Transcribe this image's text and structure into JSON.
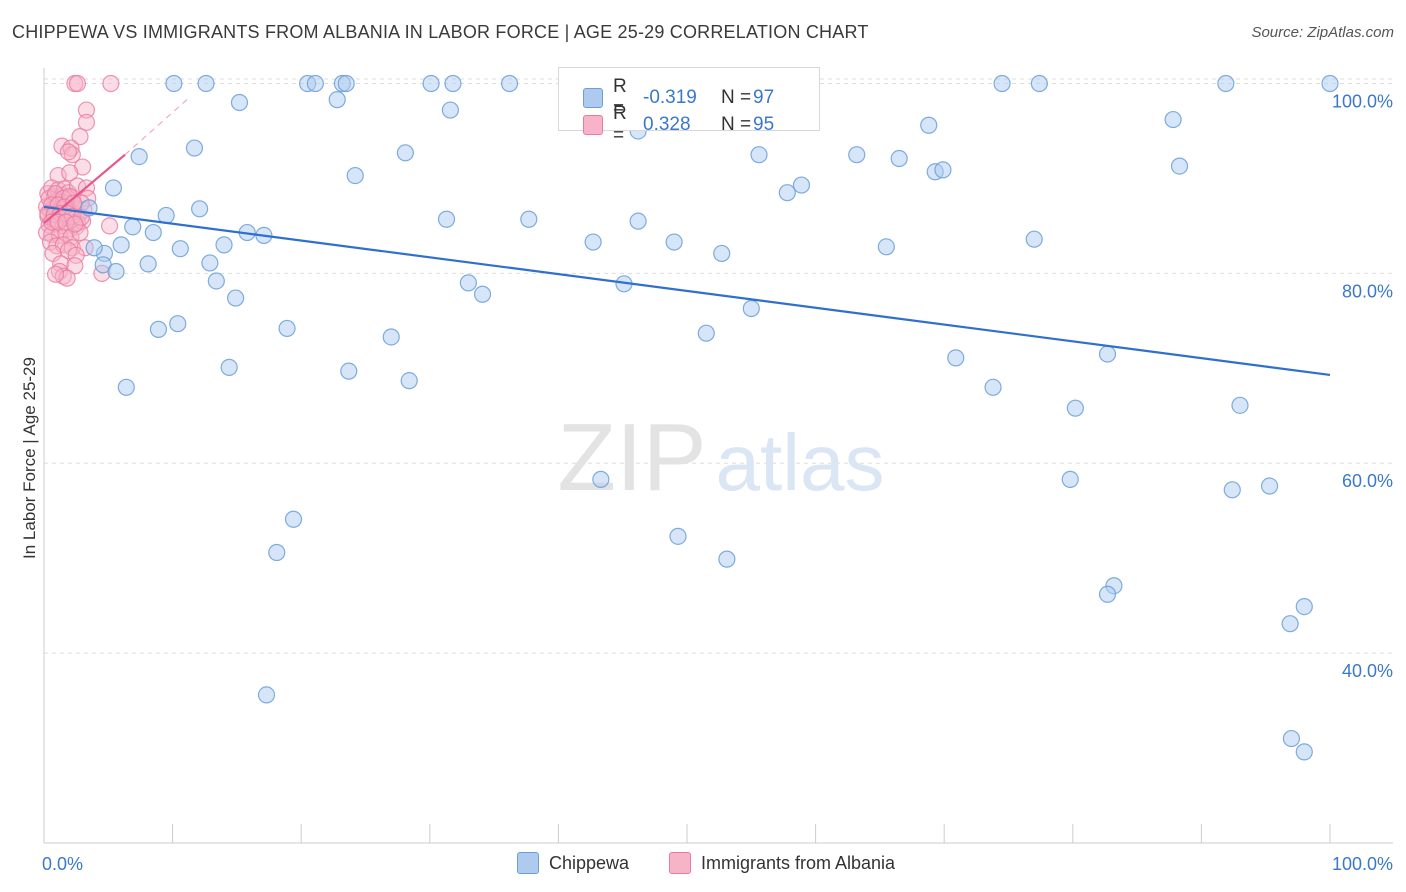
{
  "title": "CHIPPEWA VS IMMIGRANTS FROM ALBANIA IN LABOR FORCE | AGE 25-29 CORRELATION CHART",
  "source": "Source: ZipAtlas.com",
  "watermark": {
    "zip": "ZIP",
    "atlas": "atlas"
  },
  "legend": {
    "rows": [
      {
        "r_label": "R =",
        "r_value": "-0.319",
        "n_label": "N =",
        "n_value": "97"
      },
      {
        "r_label": "R =",
        "r_value": "0.328",
        "n_label": "N =",
        "n_value": "95"
      }
    ]
  },
  "bottom_legend": [
    "Chippewa",
    "Immigrants from Albania"
  ],
  "colors": {
    "chippewa_fill": "#aecbef",
    "chippewa_stroke": "#6a9fd8",
    "chippewa_line": "#2f6fcf",
    "albania_fill": "#f7b3c8",
    "albania_stroke": "#ea7aa0",
    "albania_line": "#e8558a",
    "axis_text": "#3a78cc",
    "grid": "#dddddd"
  },
  "chart_data": {
    "type": "scatter",
    "title": "CHIPPEWA VS IMMIGRANTS FROM ALBANIA IN LABOR FORCE | AGE 25-29 CORRELATION CHART",
    "xlabel": "",
    "ylabel": "In Labor Force | Age 25-29",
    "xlim": [
      0,
      100
    ],
    "ylim": [
      20,
      101
    ],
    "x_tick_labels": [
      "0.0%",
      "100.0%"
    ],
    "y_ticks": [
      40,
      60,
      80,
      100
    ],
    "y_tick_labels": [
      "40.0%",
      "60.0%",
      "80.0%",
      "100.0%"
    ],
    "series": [
      {
        "name": "Chippewa",
        "points": [
          [
            10.1,
            100
          ],
          [
            12.6,
            100
          ],
          [
            20.5,
            100
          ],
          [
            21.1,
            100
          ],
          [
            23.2,
            100
          ],
          [
            23.5,
            100
          ],
          [
            30.1,
            100
          ],
          [
            31.8,
            100
          ],
          [
            36.2,
            100
          ],
          [
            49.4,
            100
          ],
          [
            74.5,
            100
          ],
          [
            77.4,
            100
          ],
          [
            91.9,
            100
          ],
          [
            100,
            100
          ],
          [
            15.2,
            98
          ],
          [
            22.8,
            98.3
          ],
          [
            31.6,
            97.2
          ],
          [
            44.1,
            100
          ],
          [
            68.8,
            95.6
          ],
          [
            87.8,
            96.2
          ],
          [
            46.2,
            95
          ],
          [
            11.7,
            93.2
          ],
          [
            7.4,
            92.3
          ],
          [
            28.1,
            92.7
          ],
          [
            55.6,
            92.5
          ],
          [
            63.2,
            92.5
          ],
          [
            88.3,
            91.3
          ],
          [
            66.5,
            92.1
          ],
          [
            69.3,
            90.7
          ],
          [
            69.9,
            90.9
          ],
          [
            24.2,
            90.3
          ],
          [
            58.9,
            89.3
          ],
          [
            57.8,
            88.5
          ],
          [
            5.4,
            89
          ],
          [
            3.5,
            86.9
          ],
          [
            9.5,
            86.1
          ],
          [
            12.1,
            86.8
          ],
          [
            31.3,
            85.7
          ],
          [
            37.7,
            85.7
          ],
          [
            46.2,
            85.5
          ],
          [
            6.9,
            84.9
          ],
          [
            8.5,
            84.3
          ],
          [
            14.0,
            83
          ],
          [
            15.8,
            84.3
          ],
          [
            17.1,
            84
          ],
          [
            6.0,
            83
          ],
          [
            10.6,
            82.6
          ],
          [
            4.7,
            82.1
          ],
          [
            3.9,
            82.7
          ],
          [
            42.7,
            83.3
          ],
          [
            49.0,
            83.3
          ],
          [
            65.5,
            82.8
          ],
          [
            77.0,
            83.6
          ],
          [
            52.7,
            82.1
          ],
          [
            4.6,
            80.9
          ],
          [
            8.1,
            81
          ],
          [
            12.9,
            81.1
          ],
          [
            5.6,
            80.2
          ],
          [
            13.4,
            79.2
          ],
          [
            33.0,
            79
          ],
          [
            34.1,
            77.8
          ],
          [
            45.1,
            78.9
          ],
          [
            14.9,
            77.4
          ],
          [
            55.0,
            76.3
          ],
          [
            8.9,
            74.1
          ],
          [
            10.4,
            74.7
          ],
          [
            18.9,
            74.2
          ],
          [
            27.0,
            73.3
          ],
          [
            51.5,
            73.7
          ],
          [
            14.4,
            70.1
          ],
          [
            23.7,
            69.7
          ],
          [
            28.4,
            68.7
          ],
          [
            6.4,
            68
          ],
          [
            70.9,
            71.1
          ],
          [
            82.7,
            71.5
          ],
          [
            73.8,
            68
          ],
          [
            80.2,
            65.8
          ],
          [
            93.0,
            66.1
          ],
          [
            43.3,
            58.3
          ],
          [
            79.8,
            58.3
          ],
          [
            92.4,
            57.2
          ],
          [
            95.3,
            57.6
          ],
          [
            19.4,
            54.1
          ],
          [
            49.3,
            52.3
          ],
          [
            53.1,
            49.9
          ],
          [
            18.1,
            50.6
          ],
          [
            83.2,
            47.1
          ],
          [
            82.7,
            46.2
          ],
          [
            98.0,
            44.9
          ],
          [
            96.9,
            43.1
          ],
          [
            17.3,
            35.6
          ],
          [
            97.0,
            31
          ],
          [
            98.0,
            29.6
          ]
        ]
      },
      {
        "name": "Immigrants from Albania",
        "points": [
          [
            2.4,
            100
          ],
          [
            2.6,
            100
          ],
          [
            5.2,
            100
          ],
          [
            3.3,
            97.2
          ],
          [
            3.3,
            95.9
          ],
          [
            2.8,
            94.4
          ],
          [
            1.4,
            93.4
          ],
          [
            2.1,
            93.2
          ],
          [
            2.2,
            92.5
          ],
          [
            1.9,
            92.8
          ],
          [
            3.0,
            91.2
          ],
          [
            1.1,
            90.3
          ],
          [
            2.0,
            90.6
          ],
          [
            0.3,
            88.4
          ],
          [
            0.6,
            89.0
          ],
          [
            0.8,
            88.1
          ],
          [
            1.1,
            88.8
          ],
          [
            1.4,
            88.2
          ],
          [
            1.6,
            88.9
          ],
          [
            1.9,
            88.5
          ],
          [
            2.2,
            88.0
          ],
          [
            2.6,
            89.2
          ],
          [
            3.3,
            89.0
          ],
          [
            3.4,
            87.9
          ],
          [
            1.0,
            87.6
          ],
          [
            1.3,
            87.4
          ],
          [
            1.8,
            87.4
          ],
          [
            0.2,
            87.0
          ],
          [
            0.5,
            86.6
          ],
          [
            0.8,
            86.8
          ],
          [
            1.1,
            86.5
          ],
          [
            1.4,
            86.6
          ],
          [
            1.7,
            86.9
          ],
          [
            2.0,
            86.6
          ],
          [
            2.4,
            86.8
          ],
          [
            2.7,
            86.2
          ],
          [
            3.1,
            86.7
          ],
          [
            0.3,
            86.0
          ],
          [
            0.7,
            85.9
          ],
          [
            1.0,
            85.6
          ],
          [
            1.2,
            86.1
          ],
          [
            1.6,
            85.8
          ],
          [
            1.9,
            85.9
          ],
          [
            2.3,
            85.7
          ],
          [
            2.6,
            85.3
          ],
          [
            3.0,
            85.5
          ],
          [
            0.4,
            85.1
          ],
          [
            0.9,
            85.2
          ],
          [
            1.5,
            85.0
          ],
          [
            2.0,
            84.7
          ],
          [
            2.5,
            84.9
          ],
          [
            5.1,
            85.0
          ],
          [
            0.2,
            84.3
          ],
          [
            0.6,
            84.1
          ],
          [
            1.2,
            84.0
          ],
          [
            1.7,
            84.2
          ],
          [
            2.1,
            83.8
          ],
          [
            2.8,
            84.3
          ],
          [
            0.5,
            83.3
          ],
          [
            1.0,
            82.9
          ],
          [
            1.5,
            83.0
          ],
          [
            2.2,
            82.7
          ],
          [
            3.2,
            82.7
          ],
          [
            0.7,
            82.1
          ],
          [
            1.9,
            82.4
          ],
          [
            2.5,
            81.9
          ],
          [
            1.3,
            81.0
          ],
          [
            2.4,
            80.8
          ],
          [
            1.2,
            80.2
          ],
          [
            1.5,
            79.7
          ],
          [
            1.8,
            79.5
          ],
          [
            4.5,
            80.0
          ],
          [
            0.9,
            79.9
          ],
          [
            0.4,
            87.9
          ],
          [
            0.9,
            88.4
          ],
          [
            1.5,
            87.9
          ],
          [
            2.0,
            88.1
          ],
          [
            2.9,
            87.4
          ],
          [
            0.6,
            87.2
          ],
          [
            1.1,
            87.2
          ],
          [
            1.6,
            87.0
          ],
          [
            2.3,
            87.4
          ],
          [
            0.3,
            86.3
          ],
          [
            0.8,
            86.2
          ],
          [
            1.3,
            86.3
          ],
          [
            1.8,
            86.3
          ],
          [
            2.2,
            86.0
          ],
          [
            2.9,
            85.9
          ],
          [
            0.6,
            85.4
          ],
          [
            1.1,
            85.4
          ],
          [
            1.7,
            85.4
          ],
          [
            2.4,
            85.2
          ]
        ]
      }
    ],
    "trend_lines": [
      {
        "series": "Chippewa",
        "from": [
          0,
          87
        ],
        "to": [
          100,
          69.3
        ]
      },
      {
        "series": "Immigrants from Albania",
        "from": [
          0,
          85.3
        ],
        "to": [
          6.3,
          92.5
        ],
        "dashed_extension_to": [
          11.2,
          98.4
        ]
      }
    ]
  }
}
